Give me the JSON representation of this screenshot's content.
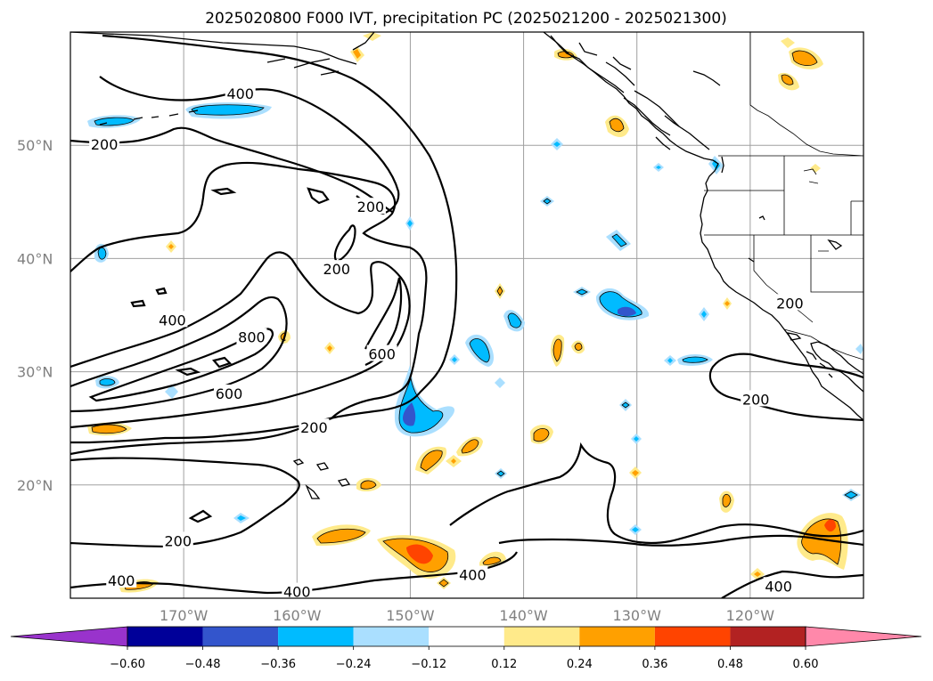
{
  "chart_data": {
    "type": "map",
    "title": "2025020800 F000 IVT, precipitation PC (2025021200 - 2025021300)",
    "extent": {
      "lon": [
        -180,
        -110
      ],
      "lat": [
        10,
        60
      ]
    },
    "grid": true,
    "lon_ticks": [
      {
        "lon": -170,
        "label": "170°W"
      },
      {
        "lon": -160,
        "label": "160°W"
      },
      {
        "lon": -150,
        "label": "150°W"
      },
      {
        "lon": -140,
        "label": "140°W"
      },
      {
        "lon": -130,
        "label": "130°W"
      },
      {
        "lon": -120,
        "label": "120°W"
      }
    ],
    "lat_ticks": [
      {
        "lat": 20,
        "label": "20°N"
      },
      {
        "lat": 30,
        "label": "30°N"
      },
      {
        "lat": 40,
        "label": "40°N"
      },
      {
        "lat": 50,
        "label": "50°N"
      }
    ],
    "colorbar": {
      "extend": "both",
      "boundaries": [
        -0.6,
        -0.48,
        -0.36,
        -0.24,
        -0.12,
        0.12,
        0.24,
        0.36,
        0.48,
        0.6
      ],
      "tick_labels": [
        "−0.60",
        "−0.48",
        "−0.36",
        "−0.24",
        "−0.12",
        "0.12",
        "0.24",
        "0.36",
        "0.48",
        "0.60"
      ],
      "colors": [
        "#9933cc",
        "#000099",
        "#3355cc",
        "#00bbff",
        "#aadfff",
        "#ffffff",
        "#ffea8a",
        "#ffa000",
        "#ff4400",
        "#b22222",
        "#ff88aa"
      ]
    },
    "ivt_contour_levels": [
      200,
      400,
      600,
      800
    ],
    "contour_labels": [
      {
        "text": "400",
        "lon": -165,
        "lat": 54.5
      },
      {
        "text": "200",
        "lon": -177,
        "lat": 50.0
      },
      {
        "text": "200",
        "lon": -153.5,
        "lat": 44.5
      },
      {
        "text": "200",
        "lon": -156.5,
        "lat": 39.0
      },
      {
        "text": "400",
        "lon": -171,
        "lat": 34.5
      },
      {
        "text": "800",
        "lon": -164,
        "lat": 33.0
      },
      {
        "text": "600",
        "lon": -152.5,
        "lat": 31.5
      },
      {
        "text": "600",
        "lon": -166,
        "lat": 28.0
      },
      {
        "text": "200",
        "lon": -158.5,
        "lat": 25.0
      },
      {
        "text": "200",
        "lon": -119.5,
        "lat": 27.5
      },
      {
        "text": "200",
        "lon": -116.5,
        "lat": 36.0
      },
      {
        "text": "200",
        "lon": -170.5,
        "lat": 15.0
      },
      {
        "text": "400",
        "lon": -175.5,
        "lat": 11.5
      },
      {
        "text": "400",
        "lon": -160,
        "lat": 10.5
      },
      {
        "text": "400",
        "lon": -144.5,
        "lat": 12.0
      },
      {
        "text": "400",
        "lon": -117.5,
        "lat": 11.0
      }
    ],
    "precip_pc_areas": [
      {
        "lon": -148.5,
        "lat": 23.5,
        "value": 0.3
      },
      {
        "lon": -144.5,
        "lat": 23.0,
        "value": 0.3
      },
      {
        "lon": -148.0,
        "lat": 15.5,
        "value": 0.4
      },
      {
        "lon": -159.0,
        "lat": 15.5,
        "value": 0.3
      },
      {
        "lon": -175.0,
        "lat": 25.0,
        "value": 0.3
      },
      {
        "lon": -174.5,
        "lat": 11.0,
        "value": 0.25
      },
      {
        "lon": -118.5,
        "lat": 15.5,
        "value": 0.45
      },
      {
        "lon": -139.0,
        "lat": 24.5,
        "value": 0.3
      },
      {
        "lon": -137.0,
        "lat": 32.0,
        "value": 0.25
      },
      {
        "lon": -130.5,
        "lat": 51.5,
        "value": 0.3
      },
      {
        "lon": -138.0,
        "lat": 58.0,
        "value": 0.25
      },
      {
        "lon": -117.0,
        "lat": 58.5,
        "value": 0.3
      },
      {
        "lon": -150.5,
        "lat": 27.5,
        "value": -0.45
      },
      {
        "lon": -130.5,
        "lat": 36.0,
        "value": -0.4
      },
      {
        "lon": -142.0,
        "lat": 32.0,
        "value": -0.3
      },
      {
        "lon": -164.0,
        "lat": 53.0,
        "value": -0.3
      },
      {
        "lon": -177.0,
        "lat": 52.0,
        "value": -0.25
      },
      {
        "lon": -125.0,
        "lat": 31.0,
        "value": -0.2
      },
      {
        "lon": -178.0,
        "lat": 40.5,
        "value": -0.25
      }
    ]
  }
}
